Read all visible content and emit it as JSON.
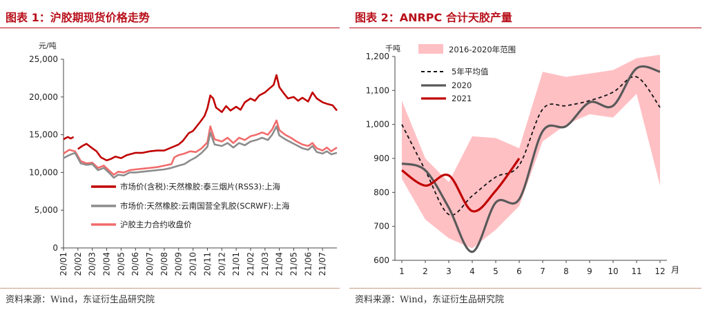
{
  "left": {
    "title": "图表 1：沪胶期现货价格走势",
    "source": "资料来源：Wind，东证衍生品研究院",
    "chart_data": {
      "type": "line",
      "unit": "元/吨",
      "ylim": [
        0,
        25000
      ],
      "yticks": [
        "0",
        "5,000",
        "10,000",
        "15,000",
        "20,000",
        "25,000"
      ],
      "xticks": [
        "20/01",
        "20/02",
        "20/03",
        "20/04",
        "20/05",
        "20/06",
        "20/07",
        "20/08",
        "20/09",
        "20/10",
        "20/11",
        "20/12",
        "21/01",
        "21/02",
        "21/03",
        "21/04",
        "21/05",
        "21/06",
        "21/07"
      ],
      "legend": [
        "市场价(含税):天然橡胶:泰三烟片(RSS3):上海",
        "市场价:天然橡胶:云南国营全乳胶(SCRWF):上海",
        "沪胶主力合约收盘价"
      ],
      "series": [
        {
          "name": "市场价(含税):天然橡胶:泰三烟片(RSS3):上海",
          "color": "#c00000",
          "segments": [
            [
              [
                0,
                14400
              ],
              [
                0.3,
                14700
              ],
              [
                0.5,
                14500
              ],
              [
                0.7,
                14700
              ]
            ],
            [
              [
                1.0,
                13100
              ],
              [
                1.3,
                13500
              ],
              [
                1.6,
                13800
              ],
              [
                2.0,
                13200
              ],
              [
                2.3,
                12800
              ],
              [
                2.6,
                12000
              ],
              [
                3.0,
                11600
              ],
              [
                3.3,
                11800
              ],
              [
                3.6,
                12100
              ],
              [
                4.0,
                11900
              ],
              [
                4.4,
                12300
              ],
              [
                5.0,
                12600
              ],
              [
                5.5,
                12600
              ],
              [
                6.0,
                12800
              ],
              [
                6.5,
                12900
              ],
              [
                7.0,
                12900
              ],
              [
                7.5,
                13300
              ],
              [
                8.0,
                13700
              ],
              [
                8.3,
                14200
              ],
              [
                8.7,
                15200
              ],
              [
                9.0,
                15500
              ],
              [
                9.5,
                16700
              ],
              [
                9.8,
                17500
              ],
              [
                10.0,
                18500
              ],
              [
                10.2,
                20200
              ],
              [
                10.4,
                19800
              ],
              [
                10.6,
                18600
              ],
              [
                11.0,
                18000
              ],
              [
                11.3,
                18800
              ],
              [
                11.6,
                18200
              ],
              [
                12.0,
                18700
              ],
              [
                12.3,
                18300
              ],
              [
                12.6,
                19300
              ],
              [
                13.0,
                19800
              ],
              [
                13.3,
                19500
              ],
              [
                13.6,
                20200
              ],
              [
                14.0,
                20600
              ],
              [
                14.3,
                21100
              ],
              [
                14.6,
                21600
              ],
              [
                14.8,
                22900
              ],
              [
                15.0,
                21300
              ],
              [
                15.3,
                20500
              ],
              [
                15.6,
                19800
              ],
              [
                16.0,
                20000
              ],
              [
                16.3,
                19500
              ],
              [
                16.6,
                19900
              ],
              [
                17.0,
                19400
              ],
              [
                17.3,
                20600
              ],
              [
                17.6,
                19800
              ],
              [
                18.0,
                19300
              ],
              [
                18.3,
                19100
              ],
              [
                18.7,
                18900
              ],
              [
                19.0,
                18200
              ]
            ]
          ]
        },
        {
          "name": "市场价:天然橡胶:云南国营全乳胶(SCRWF):上海",
          "color": "#8c8c8c",
          "segments": [
            [
              [
                0,
                11900
              ],
              [
                0.4,
                12300
              ],
              [
                0.8,
                12600
              ],
              [
                1.2,
                11200
              ],
              [
                1.6,
                11000
              ],
              [
                2.0,
                11100
              ],
              [
                2.4,
                10300
              ],
              [
                2.8,
                10600
              ],
              [
                3.2,
                9900
              ],
              [
                3.5,
                9300
              ],
              [
                3.8,
                9700
              ],
              [
                4.2,
                9600
              ],
              [
                4.6,
                10000
              ],
              [
                5.0,
                10000
              ],
              [
                5.5,
                10100
              ],
              [
                6.0,
                10200
              ],
              [
                6.5,
                10300
              ],
              [
                7.0,
                10400
              ],
              [
                7.5,
                10600
              ],
              [
                8.0,
                10900
              ],
              [
                8.4,
                11100
              ],
              [
                8.8,
                11600
              ],
              [
                9.2,
                12000
              ],
              [
                9.6,
                12600
              ],
              [
                10.0,
                13400
              ],
              [
                10.2,
                15300
              ],
              [
                10.5,
                13700
              ],
              [
                11.0,
                13500
              ],
              [
                11.4,
                13900
              ],
              [
                11.8,
                13300
              ],
              [
                12.2,
                13900
              ],
              [
                12.6,
                13600
              ],
              [
                13.0,
                14100
              ],
              [
                13.4,
                14300
              ],
              [
                13.8,
                14600
              ],
              [
                14.2,
                14300
              ],
              [
                14.5,
                15000
              ],
              [
                14.8,
                16100
              ],
              [
                15.0,
                14900
              ],
              [
                15.4,
                14400
              ],
              [
                15.8,
                14000
              ],
              [
                16.2,
                13600
              ],
              [
                16.6,
                13200
              ],
              [
                17.0,
                13000
              ],
              [
                17.3,
                13500
              ],
              [
                17.6,
                12700
              ],
              [
                18.0,
                12500
              ],
              [
                18.3,
                12800
              ],
              [
                18.6,
                12400
              ],
              [
                19.0,
                12600
              ]
            ]
          ]
        },
        {
          "name": "沪胶主力合约收盘价",
          "color": "#f26b6b",
          "segments": [
            [
              [
                0,
                12500
              ],
              [
                0.4,
                13000
              ],
              [
                0.8,
                12800
              ],
              [
                1.2,
                11500
              ],
              [
                1.6,
                11200
              ],
              [
                2.0,
                11300
              ],
              [
                2.4,
                10600
              ],
              [
                2.8,
                10900
              ],
              [
                3.2,
                10200
              ],
              [
                3.5,
                9700
              ],
              [
                3.8,
                10100
              ],
              [
                4.2,
                10000
              ],
              [
                4.6,
                10300
              ],
              [
                5.0,
                10400
              ],
              [
                5.5,
                10500
              ],
              [
                6.0,
                10600
              ],
              [
                6.5,
                10700
              ],
              [
                7.0,
                10900
              ],
              [
                7.5,
                11100
              ],
              [
                7.7,
                12000
              ],
              [
                8.0,
                12300
              ],
              [
                8.4,
                12500
              ],
              [
                8.8,
                12800
              ],
              [
                9.2,
                12700
              ],
              [
                9.6,
                13200
              ],
              [
                10.0,
                14000
              ],
              [
                10.2,
                16100
              ],
              [
                10.5,
                14400
              ],
              [
                11.0,
                14100
              ],
              [
                11.4,
                14600
              ],
              [
                11.8,
                13900
              ],
              [
                12.2,
                14600
              ],
              [
                12.6,
                14300
              ],
              [
                13.0,
                14800
              ],
              [
                13.4,
                15000
              ],
              [
                13.8,
                15300
              ],
              [
                14.2,
                15000
              ],
              [
                14.5,
                15700
              ],
              [
                14.8,
                16900
              ],
              [
                15.0,
                15600
              ],
              [
                15.4,
                15000
              ],
              [
                15.8,
                14600
              ],
              [
                16.2,
                14100
              ],
              [
                16.6,
                13700
              ],
              [
                17.0,
                13500
              ],
              [
                17.3,
                13900
              ],
              [
                17.6,
                13200
              ],
              [
                18.0,
                12900
              ],
              [
                18.3,
                13300
              ],
              [
                18.6,
                12800
              ],
              [
                19.0,
                13300
              ]
            ]
          ]
        }
      ]
    }
  },
  "right": {
    "title": "图表 2：ANRPC 合计天胶产量",
    "source": "资料来源：Wind，东证衍生品研究院",
    "chart_data": {
      "type": "line",
      "unit": "千吨",
      "xlabel": "月",
      "ylim": [
        600,
        1200
      ],
      "yticks": [
        "600",
        "700",
        "800",
        "900",
        "1,000",
        "1,100",
        "1,200"
      ],
      "xticks": [
        "1",
        "2",
        "3",
        "4",
        "5",
        "6",
        "7",
        "8",
        "9",
        "10",
        "11",
        "12"
      ],
      "range": {
        "name": "2016-2020年范围",
        "color": "#ffc0c4",
        "upper": [
          1070,
          900,
          830,
          965,
          960,
          930,
          1155,
          1140,
          1150,
          1160,
          1195,
          1205
        ],
        "lower": [
          840,
          720,
          665,
          635,
          690,
          760,
          950,
          1000,
          1030,
          1020,
          1090,
          820
        ]
      },
      "series": [
        {
          "name": "5年平均值",
          "color": "#111111",
          "dash": true,
          "values": [
            1000,
            865,
            735,
            790,
            845,
            880,
            1045,
            1055,
            1070,
            1095,
            1140,
            1050
          ]
        },
        {
          "name": "2020",
          "color": "#595959",
          "values": [
            885,
            865,
            755,
            625,
            770,
            780,
            980,
            995,
            1065,
            1055,
            1165,
            1155
          ]
        },
        {
          "name": "2021",
          "color": "#c00000",
          "values": [
            865,
            820,
            850,
            745,
            805,
            900
          ]
        }
      ]
    }
  }
}
